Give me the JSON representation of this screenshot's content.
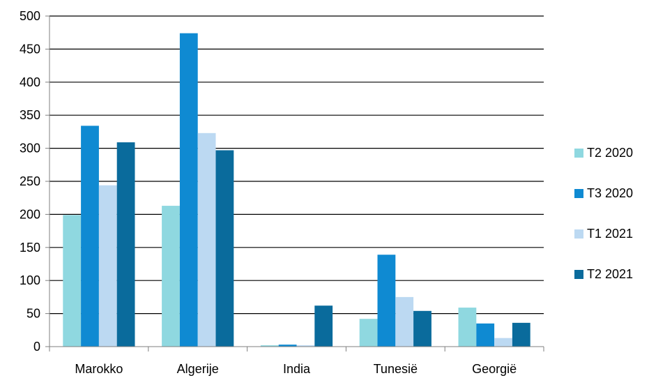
{
  "chart_data": {
    "type": "bar",
    "categories": [
      "Marokko",
      "Algerije",
      "India",
      "Tunesië",
      "Georgië"
    ],
    "series": [
      {
        "name": "T2 2020",
        "color": "#8fd8e0",
        "values": [
          199,
          213,
          2,
          42,
          59
        ]
      },
      {
        "name": "T3 2020",
        "color": "#0f8ad2",
        "values": [
          334,
          474,
          3,
          139,
          35
        ]
      },
      {
        "name": "T1 2021",
        "color": "#bcd9f2",
        "values": [
          244,
          323,
          2,
          75,
          13
        ]
      },
      {
        "name": "T2 2021",
        "color": "#0a6b9c",
        "values": [
          309,
          297,
          62,
          54,
          36
        ]
      }
    ],
    "yticks": [
      "0",
      "50",
      "100",
      "150",
      "200",
      "250",
      "300",
      "350",
      "400",
      "450",
      "500"
    ],
    "ylim": [
      0,
      500
    ],
    "grid": true,
    "legend": "right"
  }
}
